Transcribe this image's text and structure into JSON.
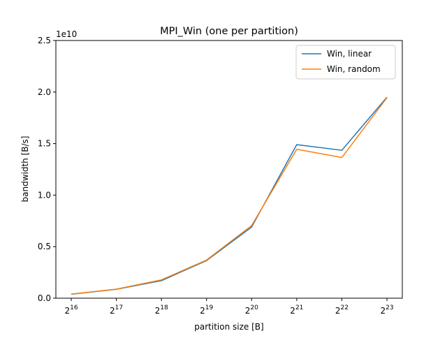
{
  "chart_data": {
    "type": "line",
    "title": "MPI_Win (one per partition)",
    "xlabel": "partition size [B]",
    "ylabel": "bandwidth [B/s]",
    "y_offset_label": "1e10",
    "y_scale_factor": 10000000000,
    "x_scale": "log2",
    "x": [
      65536,
      131072,
      262144,
      524288,
      1048576,
      2097152,
      4194304,
      8388608
    ],
    "x_tick_labels": [
      {
        "base": "2",
        "exp": "16"
      },
      {
        "base": "2",
        "exp": "17"
      },
      {
        "base": "2",
        "exp": "18"
      },
      {
        "base": "2",
        "exp": "19"
      },
      {
        "base": "2",
        "exp": "20"
      },
      {
        "base": "2",
        "exp": "21"
      },
      {
        "base": "2",
        "exp": "22"
      },
      {
        "base": "2",
        "exp": "23"
      }
    ],
    "ylim": [
      0,
      25000000000
    ],
    "y_ticks": [
      0,
      5000000000,
      10000000000,
      15000000000,
      20000000000,
      25000000000
    ],
    "y_tick_labels": [
      "0.0",
      "0.5",
      "1.0",
      "1.5",
      "2.0",
      "2.5"
    ],
    "grid": false,
    "legend_position": "top-right",
    "series": [
      {
        "name": "Win, linear",
        "color": "#1f77b4",
        "values": [
          380000000,
          860000000,
          1700000000,
          3650000000,
          6900000000,
          14900000000,
          14350000000,
          19500000000
        ]
      },
      {
        "name": "Win, random",
        "color": "#ff7f0e",
        "values": [
          400000000,
          880000000,
          1780000000,
          3700000000,
          7050000000,
          14450000000,
          13650000000,
          19450000000
        ]
      }
    ]
  }
}
